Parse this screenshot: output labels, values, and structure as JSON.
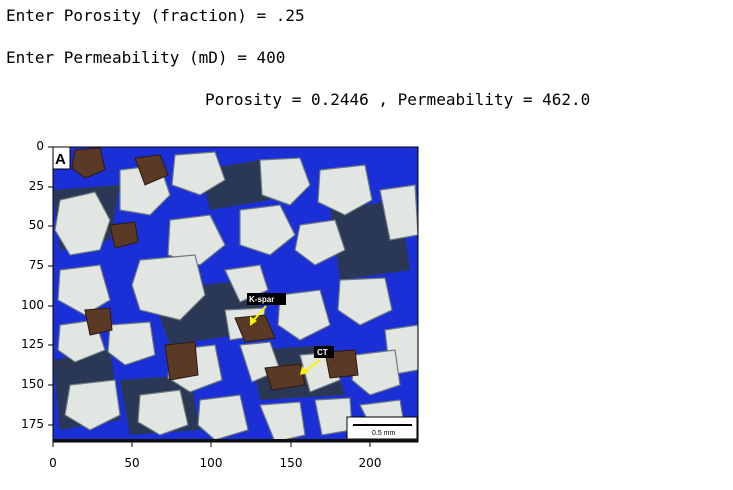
{
  "console": {
    "prompt_porosity": "Enter Porosity (fraction) = .25",
    "prompt_permeability": "Enter Permeability (mD) = 400",
    "result": "Porosity = 0.2446 , Permeability = 462.0"
  },
  "figure": {
    "panel_label": "A",
    "annotation_kspar": "K-spar",
    "annotation_ct": "CT",
    "scale_bar_label": "0.5 mm",
    "y_ticks": [
      "0",
      "25",
      "50",
      "75",
      "100",
      "125",
      "150",
      "175"
    ],
    "x_ticks": [
      "0",
      "50",
      "100",
      "150",
      "200"
    ]
  },
  "colors": {
    "pore_blue": "#1b2fd6",
    "grain_light": "#e2e6e3",
    "grain_dark": "#5a3a24",
    "background": "#ffffff"
  }
}
